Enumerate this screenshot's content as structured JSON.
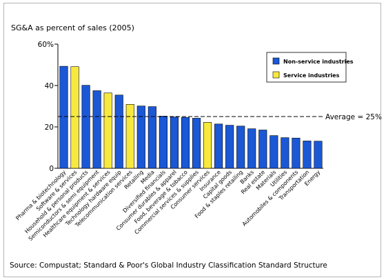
{
  "chart_data": {
    "type": "bar",
    "title": "SG&A as percent of sales (2005)",
    "source": "Source: Compustat; Standard & Poor's Global Industry Classification Standard Structure",
    "ylim": [
      0,
      60
    ],
    "yticks": [
      "0",
      "20",
      "40",
      "60%"
    ],
    "categories": [
      "Pharma & biotechnology",
      "Software & services",
      "Household & personal products",
      "Semiconductors & semi equipment",
      "Healthcare equipment & services",
      "Technology hardware equip",
      "Telecommunication services",
      "Retailing",
      "Media",
      "Diversified financials",
      "Consumer durables & apparel",
      "Food, beverage & tobacco",
      "Commercial services & supplies",
      "Consumer services",
      "Insurance",
      "Capital goods",
      "Food & staples retailing",
      "Banks",
      "Real estate",
      "Materials",
      "Utilities",
      "Automobiles & components",
      "Transportation",
      "Energy"
    ],
    "values": [
      49.3,
      49.1,
      40.1,
      37.5,
      36.4,
      35.4,
      30.9,
      30.1,
      29.8,
      25.2,
      24.8,
      24.6,
      24.2,
      22.2,
      21.4,
      20.8,
      20.4,
      19.1,
      18.5,
      15.8,
      14.8,
      14.6,
      13.2,
      13.1
    ],
    "series_type": [
      "non-service",
      "service",
      "non-service",
      "non-service",
      "service",
      "non-service",
      "service",
      "non-service",
      "non-service",
      "non-service",
      "non-service",
      "non-service",
      "non-service",
      "service",
      "non-service",
      "non-service",
      "non-service",
      "non-service",
      "non-service",
      "non-service",
      "non-service",
      "non-service",
      "non-service",
      "non-service"
    ],
    "legend": [
      {
        "key": "non-service",
        "label": "Non-service industries",
        "color": "#1b58d6"
      },
      {
        "key": "service",
        "label": "Service industries",
        "color": "#f7e93e"
      }
    ],
    "average": {
      "value": 25,
      "label": "Average = 25%"
    }
  }
}
